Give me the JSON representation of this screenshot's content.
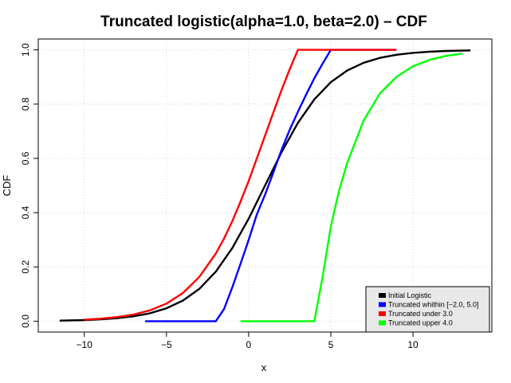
{
  "chart_data": {
    "type": "line",
    "title": "Truncated logistic(alpha=1.0, beta=2.0)  – CDF",
    "xlabel": "x",
    "ylabel": "CDF",
    "xlim": [
      -12.8,
      14.8
    ],
    "ylim": [
      -0.04,
      1.04
    ],
    "x_ticks": [
      -10,
      -5,
      0,
      5,
      10
    ],
    "x_tick_labels": [
      "−10",
      "−5",
      "0",
      "5",
      "10"
    ],
    "y_ticks": [
      0.0,
      0.2,
      0.4,
      0.6,
      0.8,
      1.0
    ],
    "y_tick_labels": [
      "0.0",
      "0.2",
      "0.4",
      "0.6",
      "0.8",
      "1.0"
    ],
    "grid": true,
    "legend_position": "bottom-right",
    "series": [
      {
        "name": "Initial Logistic",
        "color": "#000000",
        "dashed": false,
        "points": [
          [
            -11.5,
            0.0019
          ],
          [
            -10,
            0.0041
          ],
          [
            -9,
            0.0067
          ],
          [
            -8,
            0.011
          ],
          [
            -7,
            0.018
          ],
          [
            -6,
            0.0293
          ],
          [
            -5,
            0.0474
          ],
          [
            -4,
            0.0759
          ],
          [
            -3,
            0.1192
          ],
          [
            -2,
            0.1824
          ],
          [
            -1,
            0.2689
          ],
          [
            0,
            0.3775
          ],
          [
            1,
            0.5
          ],
          [
            2,
            0.6225
          ],
          [
            3,
            0.7311
          ],
          [
            4,
            0.8176
          ],
          [
            5,
            0.8808
          ],
          [
            6,
            0.9241
          ],
          [
            7,
            0.9526
          ],
          [
            8,
            0.9707
          ],
          [
            9,
            0.982
          ],
          [
            10,
            0.989
          ],
          [
            11,
            0.9933
          ],
          [
            12,
            0.9959
          ],
          [
            13.5,
            0.9981
          ]
        ]
      },
      {
        "name": "Truncated whithin [−2.0, 5.0]",
        "color": "#0000ff",
        "dashed": false,
        "points": [
          [
            -6.3,
            0.0
          ],
          [
            -2,
            0.0
          ],
          [
            -1.5,
            0.0445
          ],
          [
            -1,
            0.1241
          ],
          [
            -0.5,
            0.2107
          ],
          [
            0,
            0.2992
          ],
          [
            0.5,
            0.3934
          ],
          [
            1,
            0.4665
          ],
          [
            1.5,
            0.5476
          ],
          [
            2,
            0.6309
          ],
          [
            2.5,
            0.7054
          ],
          [
            3,
            0.7719
          ],
          [
            3.5,
            0.8351
          ],
          [
            4,
            0.8953
          ],
          [
            4.5,
            0.9494
          ],
          [
            5,
            1.0
          ],
          [
            9,
            1.0
          ]
        ]
      },
      {
        "name": "Truncated under 3.0",
        "color": "#ff0000",
        "dashed": false,
        "points": [
          [
            -10,
            0.0056
          ],
          [
            -9,
            0.0092
          ],
          [
            -8,
            0.0151
          ],
          [
            -7,
            0.0246
          ],
          [
            -6,
            0.0401
          ],
          [
            -5,
            0.0648
          ],
          [
            -4,
            0.1038
          ],
          [
            -3,
            0.163
          ],
          [
            -2,
            0.2495
          ],
          [
            -1.5,
            0.3043
          ],
          [
            -1,
            0.3678
          ],
          [
            -0.5,
            0.4397
          ],
          [
            0,
            0.5163
          ],
          [
            0.5,
            0.6
          ],
          [
            1,
            0.6839
          ],
          [
            1.5,
            0.7685
          ],
          [
            2,
            0.8514
          ],
          [
            2.5,
            0.9286
          ],
          [
            3,
            1.0
          ],
          [
            9,
            1.0
          ]
        ]
      },
      {
        "name": "Truncated upper 4.0",
        "color": "#00ff00",
        "dashed": false,
        "points": [
          [
            -0.5,
            0.0
          ],
          [
            3.95,
            0.0
          ],
          [
            4,
            0.0
          ],
          [
            4.5,
            0.1632
          ],
          [
            5,
            0.3492
          ],
          [
            5.5,
            0.4815
          ],
          [
            6,
            0.5837
          ],
          [
            7,
            0.7405
          ],
          [
            8,
            0.8403
          ],
          [
            9,
            0.9005
          ],
          [
            10,
            0.9395
          ],
          [
            11,
            0.9632
          ],
          [
            12,
            0.9778
          ],
          [
            13,
            0.9863
          ]
        ]
      }
    ]
  }
}
